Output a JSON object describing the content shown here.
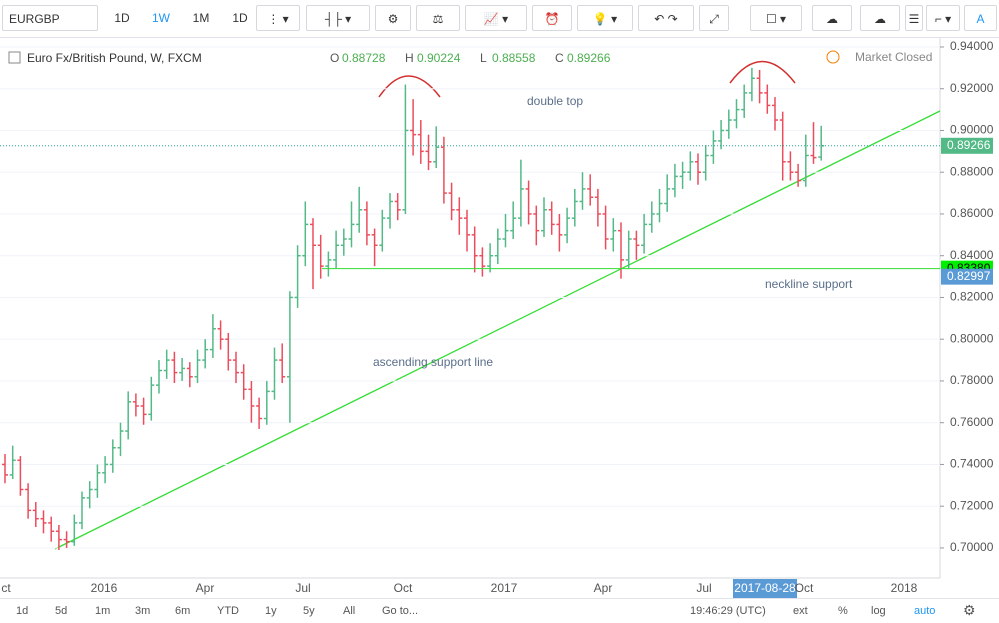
{
  "toolbar": {
    "symbol": "EURGBP",
    "intervals": [
      "1D",
      "1W",
      "1M",
      "1D"
    ]
  },
  "legend": {
    "title": "Euro Fx/British Pound, W, FXCM",
    "fields": [
      {
        "key": "O",
        "value": 0.88728
      },
      {
        "key": "H",
        "value": 0.90224
      },
      {
        "key": "L",
        "value": 0.88558
      },
      {
        "key": "C",
        "value": 0.89266
      }
    ]
  },
  "status": "Market Closed",
  "chart_data": {
    "type": "ohlc",
    "ylim": [
      0.6856,
      0.9443
    ],
    "yticks": [
      {
        "value": 0.94,
        "label": "0.94000"
      },
      {
        "value": 0.92,
        "label": "0.92000"
      },
      {
        "value": 0.9,
        "label": "0.90000"
      },
      {
        "value": 0.88,
        "label": "0.88000"
      },
      {
        "value": 0.86,
        "label": "0.86000"
      },
      {
        "value": 0.84,
        "label": "0.84000"
      },
      {
        "value": 0.82,
        "label": "0.82000"
      },
      {
        "value": 0.8,
        "label": "0.80000"
      },
      {
        "value": 0.78,
        "label": "0.78000"
      },
      {
        "value": 0.76,
        "label": "0.76000"
      },
      {
        "value": 0.74,
        "label": "0.74000"
      },
      {
        "value": 0.72,
        "label": "0.72000"
      },
      {
        "value": 0.7,
        "label": "0.70000"
      }
    ],
    "price_lines": [
      {
        "value": 0.89266,
        "label": "0.89266"
      },
      {
        "value": 0.8338,
        "label": "0.83380"
      },
      {
        "value": 0.82997,
        "label": "0.82997"
      }
    ],
    "time_labels": [
      "ct",
      "2016",
      "Apr",
      "Jul",
      "Oct",
      "2017",
      "Apr",
      "Jul",
      "2017-08-28",
      "Oct",
      "2018"
    ],
    "annotations": [
      "double top",
      "neckline support",
      "ascending support line"
    ],
    "colors": {
      "up": "#53b987",
      "down": "#eb4d5c"
    },
    "bars": [
      [
        0.74,
        0.745,
        0.731,
        0.735
      ],
      [
        0.735,
        0.749,
        0.733,
        0.742
      ],
      [
        0.742,
        0.744,
        0.725,
        0.728
      ],
      [
        0.728,
        0.731,
        0.714,
        0.718
      ],
      [
        0.718,
        0.722,
        0.71,
        0.714
      ],
      [
        0.714,
        0.718,
        0.707,
        0.712
      ],
      [
        0.712,
        0.715,
        0.703,
        0.708
      ],
      [
        0.708,
        0.711,
        0.699,
        0.704
      ],
      [
        0.704,
        0.708,
        0.7,
        0.703
      ],
      [
        0.703,
        0.716,
        0.701,
        0.712
      ],
      [
        0.712,
        0.727,
        0.709,
        0.724
      ],
      [
        0.724,
        0.732,
        0.719,
        0.728
      ],
      [
        0.728,
        0.74,
        0.724,
        0.736
      ],
      [
        0.736,
        0.744,
        0.731,
        0.74
      ],
      [
        0.74,
        0.752,
        0.736,
        0.748
      ],
      [
        0.748,
        0.76,
        0.744,
        0.756
      ],
      [
        0.756,
        0.775,
        0.752,
        0.77
      ],
      [
        0.77,
        0.774,
        0.763,
        0.768
      ],
      [
        0.768,
        0.772,
        0.759,
        0.764
      ],
      [
        0.764,
        0.782,
        0.761,
        0.778
      ],
      [
        0.778,
        0.79,
        0.774,
        0.785
      ],
      [
        0.785,
        0.795,
        0.781,
        0.79
      ],
      [
        0.79,
        0.794,
        0.779,
        0.784
      ],
      [
        0.784,
        0.791,
        0.78,
        0.786
      ],
      [
        0.786,
        0.789,
        0.777,
        0.782
      ],
      [
        0.782,
        0.795,
        0.779,
        0.79
      ],
      [
        0.79,
        0.8,
        0.786,
        0.795
      ],
      [
        0.795,
        0.812,
        0.791,
        0.805
      ],
      [
        0.805,
        0.809,
        0.795,
        0.8
      ],
      [
        0.8,
        0.803,
        0.785,
        0.79
      ],
      [
        0.79,
        0.794,
        0.779,
        0.784
      ],
      [
        0.784,
        0.788,
        0.771,
        0.776
      ],
      [
        0.776,
        0.78,
        0.76,
        0.768
      ],
      [
        0.768,
        0.772,
        0.757,
        0.762
      ],
      [
        0.762,
        0.78,
        0.759,
        0.775
      ],
      [
        0.775,
        0.796,
        0.771,
        0.79
      ],
      [
        0.79,
        0.798,
        0.779,
        0.782
      ],
      [
        0.782,
        0.823,
        0.76,
        0.82
      ],
      [
        0.82,
        0.845,
        0.815,
        0.84
      ],
      [
        0.84,
        0.866,
        0.835,
        0.855
      ],
      [
        0.855,
        0.858,
        0.824,
        0.845
      ],
      [
        0.845,
        0.85,
        0.829,
        0.835
      ],
      [
        0.835,
        0.842,
        0.83,
        0.838
      ],
      [
        0.838,
        0.852,
        0.834,
        0.845
      ],
      [
        0.845,
        0.853,
        0.84,
        0.848
      ],
      [
        0.848,
        0.866,
        0.844,
        0.855
      ],
      [
        0.855,
        0.873,
        0.851,
        0.862
      ],
      [
        0.862,
        0.866,
        0.845,
        0.85
      ],
      [
        0.85,
        0.853,
        0.835,
        0.845
      ],
      [
        0.845,
        0.862,
        0.842,
        0.858
      ],
      [
        0.858,
        0.87,
        0.853,
        0.866
      ],
      [
        0.866,
        0.87,
        0.857,
        0.862
      ],
      [
        0.862,
        0.922,
        0.86,
        0.9
      ],
      [
        0.9,
        0.915,
        0.888,
        0.898
      ],
      [
        0.898,
        0.905,
        0.884,
        0.89
      ],
      [
        0.89,
        0.898,
        0.881,
        0.885
      ],
      [
        0.885,
        0.902,
        0.882,
        0.892
      ],
      [
        0.892,
        0.897,
        0.865,
        0.87
      ],
      [
        0.87,
        0.875,
        0.857,
        0.862
      ],
      [
        0.862,
        0.868,
        0.85,
        0.858
      ],
      [
        0.858,
        0.862,
        0.842,
        0.85
      ],
      [
        0.85,
        0.854,
        0.832,
        0.84
      ],
      [
        0.84,
        0.844,
        0.83,
        0.835
      ],
      [
        0.835,
        0.846,
        0.832,
        0.84
      ],
      [
        0.84,
        0.853,
        0.836,
        0.848
      ],
      [
        0.848,
        0.86,
        0.844,
        0.852
      ],
      [
        0.852,
        0.866,
        0.848,
        0.858
      ],
      [
        0.858,
        0.886,
        0.854,
        0.872
      ],
      [
        0.872,
        0.876,
        0.855,
        0.86
      ],
      [
        0.86,
        0.864,
        0.845,
        0.852
      ],
      [
        0.852,
        0.868,
        0.849,
        0.862
      ],
      [
        0.862,
        0.866,
        0.85,
        0.855
      ],
      [
        0.855,
        0.86,
        0.842,
        0.85
      ],
      [
        0.85,
        0.863,
        0.846,
        0.858
      ],
      [
        0.858,
        0.872,
        0.854,
        0.866
      ],
      [
        0.866,
        0.88,
        0.862,
        0.872
      ],
      [
        0.872,
        0.879,
        0.864,
        0.868
      ],
      [
        0.868,
        0.872,
        0.854,
        0.86
      ],
      [
        0.86,
        0.864,
        0.843,
        0.848
      ],
      [
        0.848,
        0.858,
        0.842,
        0.852
      ],
      [
        0.852,
        0.856,
        0.829,
        0.838
      ],
      [
        0.838,
        0.852,
        0.834,
        0.848
      ],
      [
        0.848,
        0.852,
        0.838,
        0.845
      ],
      [
        0.845,
        0.86,
        0.841,
        0.855
      ],
      [
        0.855,
        0.866,
        0.851,
        0.86
      ],
      [
        0.86,
        0.872,
        0.856,
        0.865
      ],
      [
        0.865,
        0.879,
        0.861,
        0.872
      ],
      [
        0.872,
        0.884,
        0.868,
        0.878
      ],
      [
        0.878,
        0.885,
        0.872,
        0.88
      ],
      [
        0.88,
        0.89,
        0.876,
        0.885
      ],
      [
        0.885,
        0.889,
        0.874,
        0.88
      ],
      [
        0.88,
        0.893,
        0.876,
        0.888
      ],
      [
        0.888,
        0.9,
        0.884,
        0.895
      ],
      [
        0.895,
        0.905,
        0.891,
        0.9
      ],
      [
        0.9,
        0.91,
        0.896,
        0.905
      ],
      [
        0.905,
        0.915,
        0.901,
        0.91
      ],
      [
        0.91,
        0.922,
        0.906,
        0.918
      ],
      [
        0.918,
        0.93,
        0.914,
        0.925
      ],
      [
        0.925,
        0.929,
        0.913,
        0.918
      ],
      [
        0.918,
        0.922,
        0.908,
        0.912
      ],
      [
        0.912,
        0.916,
        0.9,
        0.905
      ],
      [
        0.905,
        0.909,
        0.876,
        0.885
      ],
      [
        0.885,
        0.89,
        0.876,
        0.88
      ],
      [
        0.88,
        0.884,
        0.873,
        0.876
      ],
      [
        0.876,
        0.898,
        0.873,
        0.888
      ],
      [
        0.888,
        0.904,
        0.884,
        0.887
      ],
      [
        0.88728,
        0.90224,
        0.88558,
        0.89266
      ]
    ]
  },
  "bottom_bar": {
    "ranges": [
      "1d",
      "5d",
      "1m",
      "3m",
      "6m",
      "YTD",
      "1y",
      "5y",
      "All",
      "Go to..."
    ],
    "clock": "19:46:29 (UTC)",
    "options": [
      "ext",
      "%",
      "log",
      "auto"
    ]
  }
}
